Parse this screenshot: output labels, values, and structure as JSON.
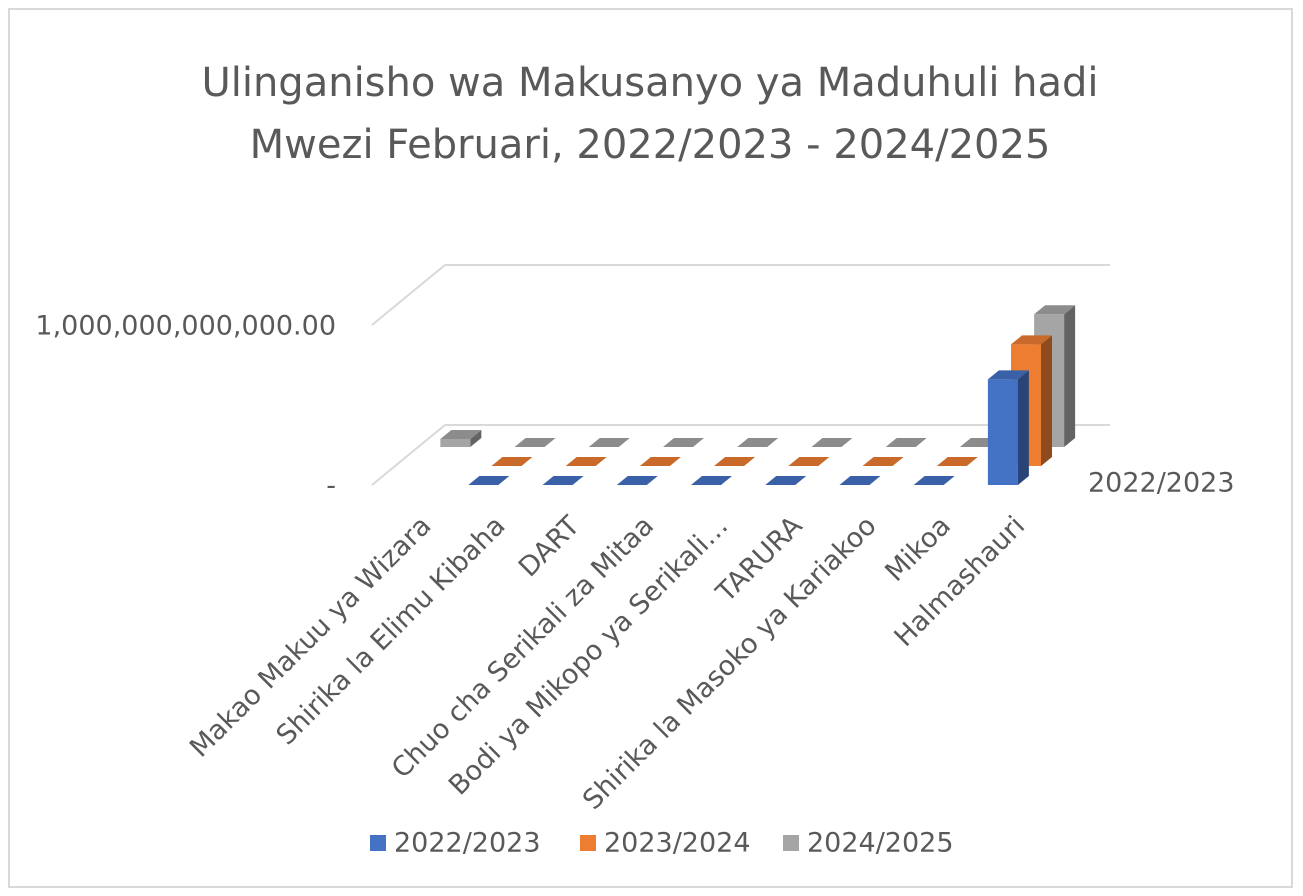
{
  "chart_data": {
    "type": "bar3d",
    "title": "Ulinganisho wa Makusanyo ya Maduhuli hadi Mwezi Februari, 2022/2023 - 2024/2025",
    "categories": [
      "Makao Makuu ya Wizara",
      "Shirika la Elimu Kibaha",
      "DART",
      "Chuo cha Serikali za Mitaa",
      "Bodi ya Mikopo ya Serikali…",
      "TARURA",
      "Shirika la Masoko ya Kariakoo",
      "Mikoa",
      "Halmashauri"
    ],
    "series": [
      {
        "name": "2022/2023",
        "color": "#4472c4",
        "values": [
          null,
          0,
          0,
          0,
          0,
          0,
          0,
          0,
          660000000000
        ]
      },
      {
        "name": "2023/2024",
        "color": "#ed7d31",
        "values": [
          null,
          0,
          0,
          0,
          0,
          0,
          0,
          0,
          760000000000
        ]
      },
      {
        "name": "2024/2025",
        "color": "#a5a5a5",
        "values": [
          50000000000,
          0,
          0,
          0,
          0,
          0,
          0,
          0,
          830000000000
        ]
      }
    ],
    "ylim": [
      0,
      1000000000000
    ],
    "yticks": [
      {
        "value": 0,
        "label": "-"
      },
      {
        "value": 1000000000000,
        "label": "1,000,000,000,000.00"
      }
    ],
    "grid": true,
    "legend": "bottom"
  }
}
